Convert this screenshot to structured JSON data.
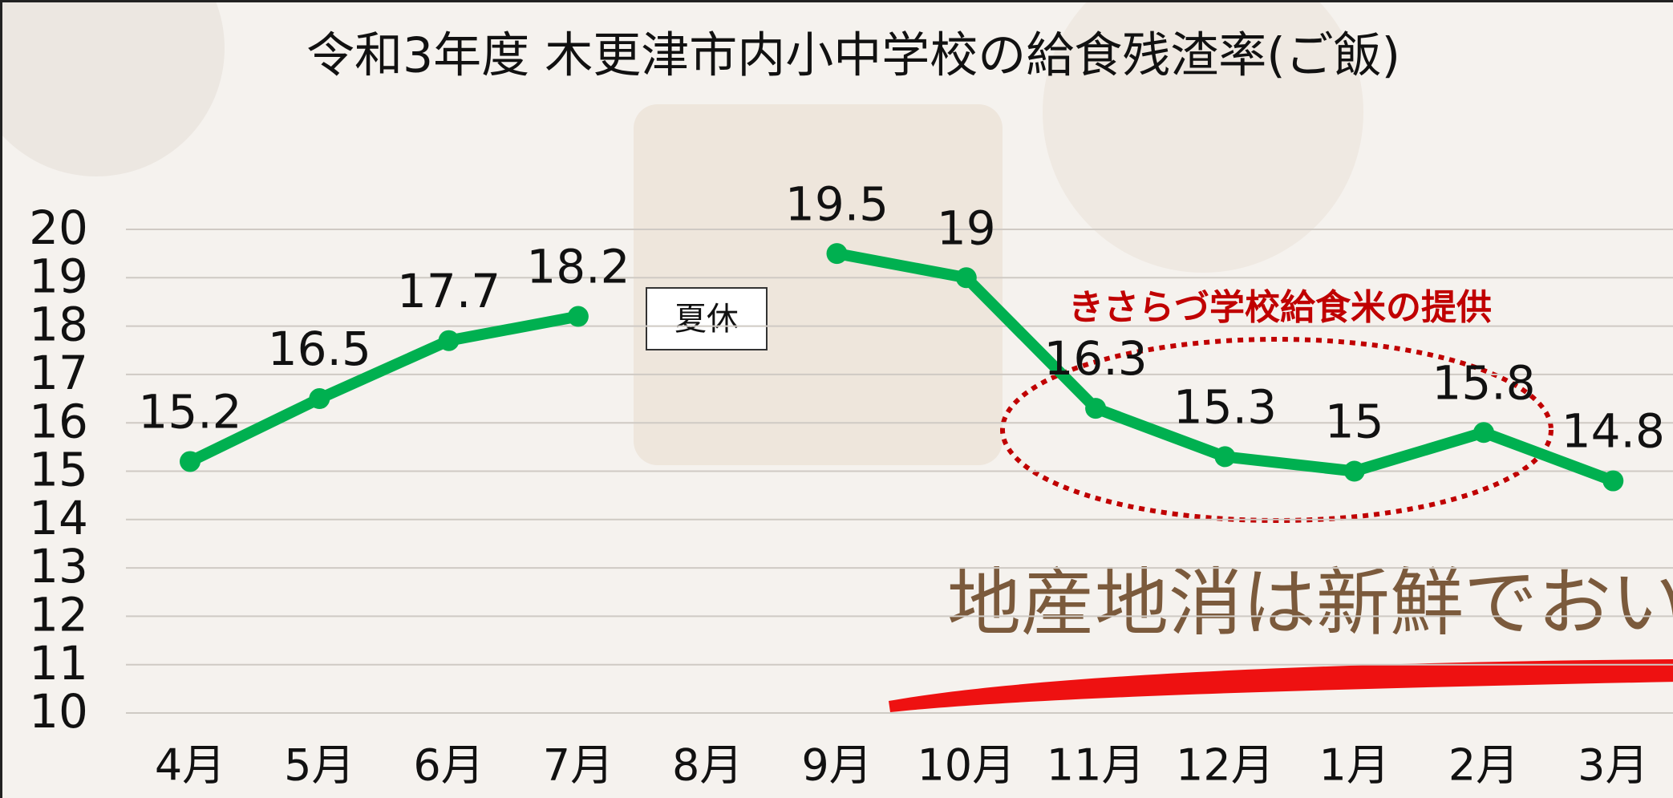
{
  "chart_data": {
    "type": "line",
    "title": "令和3年度 木更津市内小中学校の給食残渣率(ご飯)",
    "categories": [
      "4月",
      "5月",
      "6月",
      "7月",
      "8月",
      "9月",
      "10月",
      "11月",
      "12月",
      "1月",
      "2月",
      "3月"
    ],
    "values": [
      15.2,
      16.5,
      17.7,
      18.2,
      null,
      19.5,
      19,
      16.3,
      15.3,
      15,
      15.8,
      14.8
    ],
    "color": "#00b050",
    "ylim": [
      10,
      20
    ],
    "yticks": [
      10,
      11,
      12,
      13,
      14,
      15,
      16,
      17,
      18,
      19,
      20
    ],
    "grid": true,
    "annotations": [
      "夏休",
      "きさらづ学校給食米の提供",
      "地産地消は新鮮でおい"
    ]
  }
}
